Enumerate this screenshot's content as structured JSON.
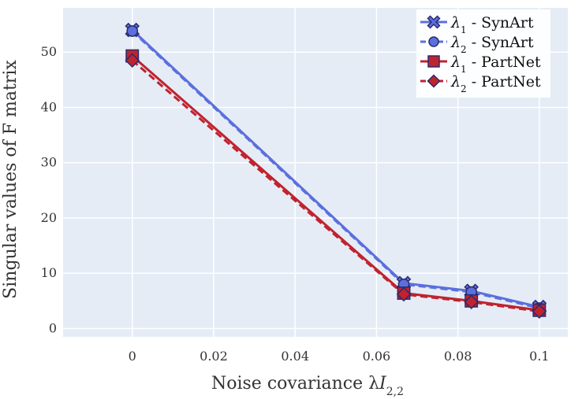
{
  "chart_data": {
    "type": "line",
    "xlabel": {
      "main": "Noise covariance λ",
      "italic": "I",
      "sub": "2,2"
    },
    "ylabel": "Singular values of F matrix",
    "xlim": [
      -0.017,
      0.107
    ],
    "ylim": [
      -1.5,
      58
    ],
    "xticks": [
      0,
      0.02,
      0.04,
      0.06,
      0.08,
      0.1
    ],
    "xtick_labels": [
      "0",
      "0.02",
      "0.04",
      "0.06",
      "0.08",
      "0.1"
    ],
    "yticks": [
      0,
      10,
      20,
      30,
      40,
      50
    ],
    "ytick_labels": [
      "0",
      "10",
      "20",
      "30",
      "40",
      "50"
    ],
    "grid": true,
    "background": "#e5ecf6",
    "legend_position": "top-right",
    "x": [
      0,
      0.0667,
      0.0833,
      0.1
    ],
    "series": [
      {
        "name": "λ1 - SynArt",
        "label_main": "λ",
        "label_sub": "1",
        "label_rest": " - SynArt",
        "values": [
          54.0,
          8.2,
          6.8,
          3.9
        ],
        "color": "#5b6fdd",
        "marker": "x",
        "dash": "solid"
      },
      {
        "name": "λ2 - SynArt",
        "label_main": "λ",
        "label_sub": "2",
        "label_rest": " - SynArt",
        "values": [
          53.8,
          8.0,
          6.6,
          3.7
        ],
        "color": "#5b6fdd",
        "marker": "circle",
        "dash": "dashed"
      },
      {
        "name": "λ1 - PartNet",
        "label_main": "λ",
        "label_sub": "1",
        "label_rest": " - PartNet",
        "values": [
          49.3,
          6.4,
          5.0,
          3.3
        ],
        "color": "#c0232e",
        "marker": "square",
        "dash": "solid"
      },
      {
        "name": "λ2 - PartNet",
        "label_main": "λ",
        "label_sub": "2",
        "label_rest": " - PartNet",
        "values": [
          48.5,
          6.2,
          4.8,
          3.1
        ],
        "color": "#c0232e",
        "marker": "diamond",
        "dash": "dashed"
      }
    ]
  }
}
